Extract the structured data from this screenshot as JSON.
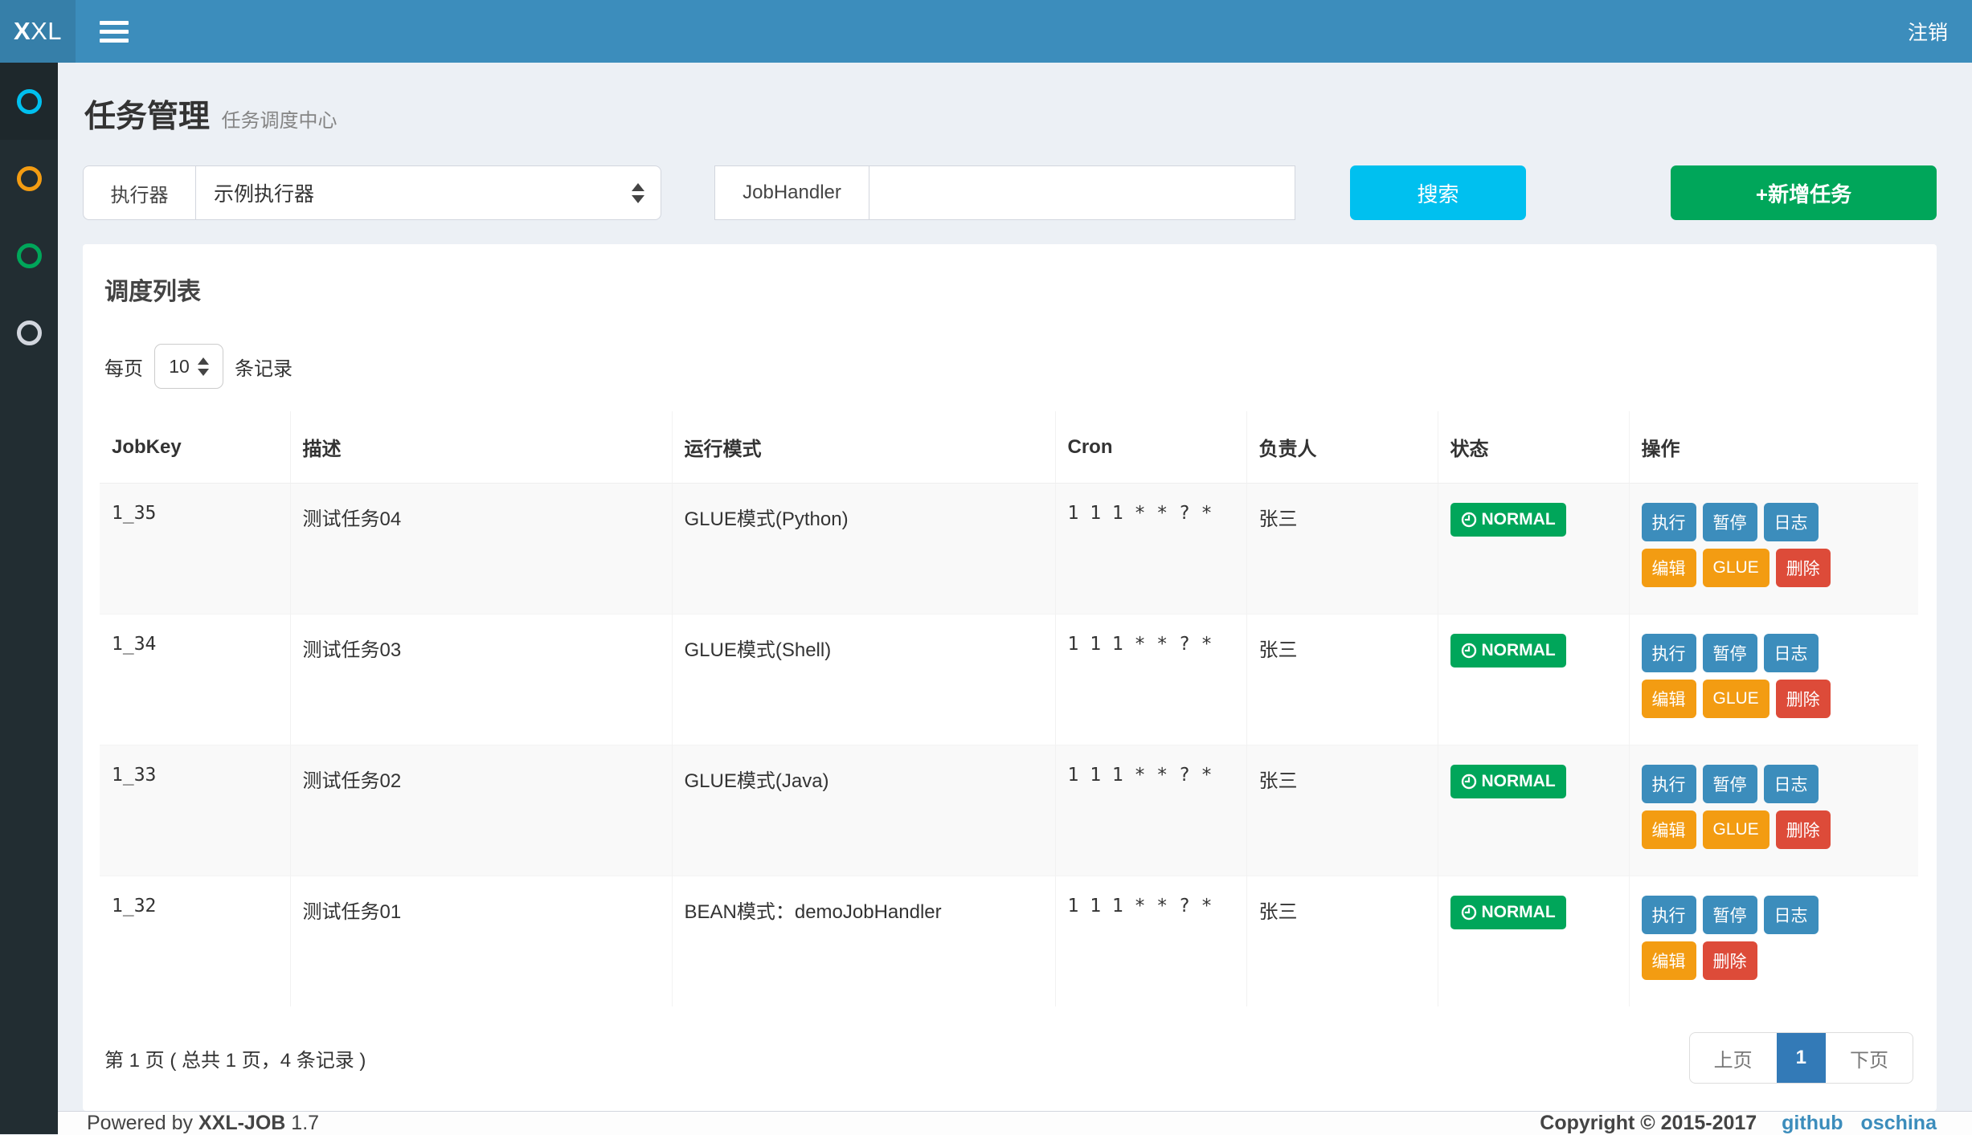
{
  "navbar": {
    "logo_bold": "X",
    "logo_rest": "XL",
    "logout_label": "注销"
  },
  "sidebar": {
    "items": [
      {
        "color": "#00c0ef",
        "active": true
      },
      {
        "color": "#f39c12",
        "active": false
      },
      {
        "color": "#00a65a",
        "active": false
      },
      {
        "color": "#d2d6de",
        "active": false
      }
    ]
  },
  "page_header": {
    "title": "任务管理",
    "subtitle": "任务调度中心"
  },
  "filters": {
    "executor": {
      "label": "执行器",
      "value": "示例执行器"
    },
    "jobhandler": {
      "label": "JobHandler",
      "value": ""
    },
    "search_button": "搜索",
    "add_button": "+新增任务"
  },
  "panel": {
    "title": "调度列表",
    "page_size": {
      "prefix": "每页",
      "value": "10",
      "suffix": "条记录"
    }
  },
  "table": {
    "columns": [
      "JobKey",
      "描述",
      "运行模式",
      "Cron",
      "负责人",
      "状态",
      "操作"
    ],
    "rows": [
      {
        "job_key": "1_35",
        "desc": "测试任务04",
        "mode": "GLUE模式(Python)",
        "cron": "1 1 1 * * ? *",
        "owner": "张三",
        "status": "NORMAL",
        "action_lines": [
          [
            {
              "name": "run",
              "label": "执行",
              "style": "blue"
            },
            {
              "name": "pause",
              "label": "暂停",
              "style": "blue"
            },
            {
              "name": "log",
              "label": "日志",
              "style": "blue"
            }
          ],
          [
            {
              "name": "edit",
              "label": "编辑",
              "style": "orange"
            },
            {
              "name": "glue",
              "label": "GLUE",
              "style": "orange"
            },
            {
              "name": "delete",
              "label": "删除",
              "style": "red"
            }
          ]
        ]
      },
      {
        "job_key": "1_34",
        "desc": "测试任务03",
        "mode": "GLUE模式(Shell)",
        "cron": "1 1 1 * * ? *",
        "owner": "张三",
        "status": "NORMAL",
        "action_lines": [
          [
            {
              "name": "run",
              "label": "执行",
              "style": "blue"
            },
            {
              "name": "pause",
              "label": "暂停",
              "style": "blue"
            },
            {
              "name": "log",
              "label": "日志",
              "style": "blue"
            }
          ],
          [
            {
              "name": "edit",
              "label": "编辑",
              "style": "orange"
            },
            {
              "name": "glue",
              "label": "GLUE",
              "style": "orange"
            },
            {
              "name": "delete",
              "label": "删除",
              "style": "red"
            }
          ]
        ]
      },
      {
        "job_key": "1_33",
        "desc": "测试任务02",
        "mode": "GLUE模式(Java)",
        "cron": "1 1 1 * * ? *",
        "owner": "张三",
        "status": "NORMAL",
        "action_lines": [
          [
            {
              "name": "run",
              "label": "执行",
              "style": "blue"
            },
            {
              "name": "pause",
              "label": "暂停",
              "style": "blue"
            },
            {
              "name": "log",
              "label": "日志",
              "style": "blue"
            }
          ],
          [
            {
              "name": "edit",
              "label": "编辑",
              "style": "orange"
            },
            {
              "name": "glue",
              "label": "GLUE",
              "style": "orange"
            },
            {
              "name": "delete",
              "label": "删除",
              "style": "red"
            }
          ]
        ]
      },
      {
        "job_key": "1_32",
        "desc": "测试任务01",
        "mode": "BEAN模式：demoJobHandler",
        "cron": "1 1 1 * * ? *",
        "owner": "张三",
        "status": "NORMAL",
        "action_lines": [
          [
            {
              "name": "run",
              "label": "执行",
              "style": "blue"
            },
            {
              "name": "pause",
              "label": "暂停",
              "style": "blue"
            },
            {
              "name": "log",
              "label": "日志",
              "style": "blue"
            }
          ],
          [
            {
              "name": "edit",
              "label": "编辑",
              "style": "orange"
            },
            {
              "name": "delete",
              "label": "删除",
              "style": "red"
            }
          ]
        ]
      }
    ]
  },
  "pagination": {
    "info": "第 1 页 ( 总共 1 页，4 条记录 )",
    "prev": "上页",
    "current": "1",
    "next": "下页"
  },
  "footer": {
    "powered_by": "Powered by",
    "product": "XXL-JOB",
    "version": "1.7",
    "copyright": "Copyright © 2015-2017",
    "links": [
      {
        "label": "github"
      },
      {
        "label": "oschina"
      }
    ]
  },
  "colors": {
    "navbar": "#3c8dbc",
    "logo_bg": "#367fa9",
    "sidebar": "#222d32",
    "sidebar_active": "#1e282c",
    "content_bg": "#ecf0f5",
    "aqua": "#00c0ef",
    "green": "#00a65a",
    "blue": "#3c8dbc",
    "orange": "#f39c12",
    "red": "#dd4b39",
    "pagination_active": "#337ab7"
  }
}
